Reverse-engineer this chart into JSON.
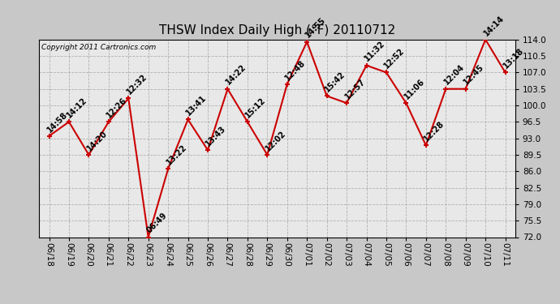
{
  "title": "THSW Index Daily High (°F) 20110712",
  "copyright": "Copyright 2011 Cartronics.com",
  "dates": [
    "06/18",
    "06/19",
    "06/20",
    "06/21",
    "06/22",
    "06/23",
    "06/24",
    "06/25",
    "06/26",
    "06/27",
    "06/28",
    "06/29",
    "06/30",
    "07/01",
    "07/02",
    "07/03",
    "07/04",
    "07/05",
    "07/06",
    "07/07",
    "07/08",
    "07/09",
    "07/10",
    "07/11"
  ],
  "values": [
    93.5,
    96.5,
    89.5,
    96.5,
    101.5,
    72.0,
    86.5,
    97.0,
    90.5,
    103.5,
    96.5,
    89.5,
    104.5,
    113.5,
    102.0,
    100.5,
    108.5,
    107.0,
    100.5,
    91.5,
    103.5,
    103.5,
    114.0,
    107.0
  ],
  "time_labels": [
    "14:58",
    "14:12",
    "14:20",
    "12:26",
    "12:32",
    "06:49",
    "13:22",
    "13:41",
    "13:43",
    "14:22",
    "15:12",
    "12:02",
    "12:48",
    "14:55",
    "15:42",
    "12:57",
    "11:32",
    "12:52",
    "11:06",
    "12:28",
    "12:04",
    "12:45",
    "14:14",
    "13:18"
  ],
  "ylim": [
    72.0,
    114.0
  ],
  "yticks": [
    72.0,
    75.5,
    79.0,
    82.5,
    86.0,
    89.5,
    93.0,
    96.5,
    100.0,
    103.5,
    107.0,
    110.5,
    114.0
  ],
  "line_color": "#cc0000",
  "marker_color": "#cc0000",
  "fig_bg": "#c8c8c8",
  "plot_bg": "#e8e8e8",
  "title_fontsize": 11,
  "label_fontsize": 7,
  "tick_fontsize": 7.5,
  "figwidth": 6.9,
  "figheight": 3.75,
  "dpi": 100
}
